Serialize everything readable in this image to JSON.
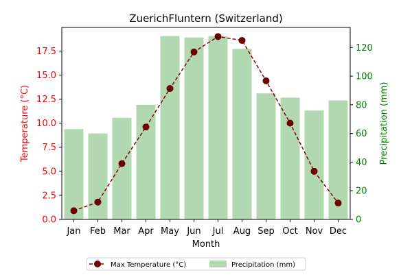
{
  "chart_data": {
    "type": "bar",
    "title": "ZuerichFluntern (Switzerland)",
    "xlabel": "Month",
    "ylabel_left": "Temperature (°C)",
    "ylabel_right": "Precipitation (mm)",
    "categories": [
      "Jan",
      "Feb",
      "Mar",
      "Apr",
      "May",
      "Jun",
      "Jul",
      "Aug",
      "Sep",
      "Oct",
      "Nov",
      "Dec"
    ],
    "series": [
      {
        "name": "Max Temperature (°C)",
        "type": "line",
        "axis": "left",
        "values": [
          0.9,
          1.8,
          5.8,
          9.6,
          13.6,
          17.4,
          19.0,
          18.6,
          14.4,
          10.0,
          5.0,
          1.7
        ]
      },
      {
        "name": "Precipitation (mm)",
        "type": "bar",
        "axis": "right",
        "values": [
          63,
          60,
          71,
          80,
          128,
          127,
          128,
          119,
          88,
          85,
          76,
          83
        ]
      }
    ],
    "ylim_left": [
      0,
      19.95
    ],
    "ylim_right": [
      0,
      134
    ],
    "yticks_left": [
      "0.0",
      "2.5",
      "5.0",
      "7.5",
      "10.0",
      "12.5",
      "15.0",
      "17.5"
    ],
    "yticks_right": [
      "0",
      "20",
      "40",
      "60",
      "80",
      "100",
      "120"
    ],
    "legend_position": "bottom-center",
    "grid": false,
    "colors": {
      "line": "#8b0000",
      "marker": "#6b0000",
      "bar": "#b2d8b2",
      "left_axis": "#ff0000",
      "right_axis": "#008000"
    }
  }
}
